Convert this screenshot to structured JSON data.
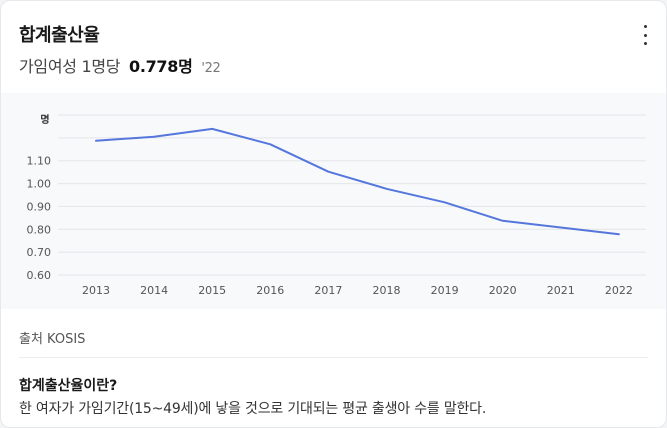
{
  "header": {
    "title": "합계출산율",
    "subtitle_prefix": "가임여성 1명당",
    "subtitle_value": "0.778명",
    "subtitle_year": "'22"
  },
  "menu": {
    "icon": "more-vertical-icon"
  },
  "source": {
    "label": "출처 KOSIS"
  },
  "definition": {
    "title": "합계출산율이란?",
    "text": "한 여자가 가임기간(15~49세)에 낳을 것으로 기대되는 평균 출생아 수를 말한다."
  },
  "chart_data": {
    "type": "line",
    "x": [
      "2013",
      "2014",
      "2015",
      "2016",
      "2017",
      "2018",
      "2019",
      "2020",
      "2021",
      "2022"
    ],
    "series": [
      {
        "values": [
          1.187,
          1.205,
          1.239,
          1.172,
          1.052,
          0.977,
          0.918,
          0.837,
          0.808,
          0.778
        ],
        "color": "#5577dd"
      }
    ],
    "yunit": "명",
    "yticks": [
      0.6,
      0.7,
      0.8,
      0.9,
      1.0,
      1.1
    ],
    "ytick_labels": [
      "0.60",
      "0.70",
      "0.80",
      "0.90",
      "1.00",
      "1.10"
    ],
    "ylim": [
      0.6,
      1.3
    ],
    "grid": true
  }
}
